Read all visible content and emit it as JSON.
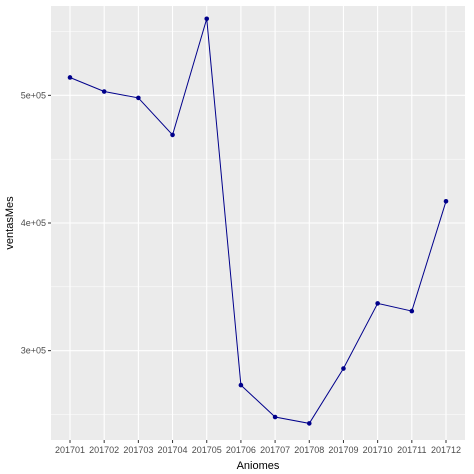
{
  "chart_data": {
    "type": "line",
    "xlabel": "Aniomes",
    "ylabel": "ventasMes",
    "categories": [
      "201701",
      "201702",
      "201703",
      "201704",
      "201705",
      "201706",
      "201707",
      "201708",
      "201709",
      "201710",
      "201711",
      "201712"
    ],
    "series": [
      {
        "values": [
          514000,
          503000,
          498000,
          469000,
          560000,
          273000,
          248000,
          243000,
          286000,
          337000,
          331000,
          417000
        ]
      }
    ],
    "y_ticks": [
      300000,
      400000,
      500000
    ],
    "y_tick_labels": [
      "3e+05",
      "4e+05",
      "5e+05"
    ],
    "ylim": [
      230000,
      570000
    ],
    "grid": true,
    "colors": {
      "panel": "#EBEBEB",
      "grid": "#FFFFFF",
      "line": "#00008B",
      "point": "#00008B"
    }
  }
}
